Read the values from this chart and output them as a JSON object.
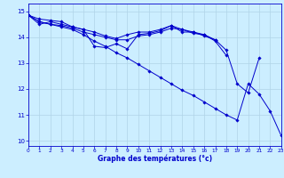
{
  "title": "Graphe des températures (°c)",
  "background_color": "#cceeff",
  "grid_color": "#b0d4e8",
  "line_color": "#0000cc",
  "marker_color": "#0000cc",
  "xlim": [
    0,
    23
  ],
  "ylim": [
    9.8,
    15.3
  ],
  "yticks": [
    10,
    11,
    12,
    13,
    14,
    15
  ],
  "xticks": [
    0,
    1,
    2,
    3,
    4,
    5,
    6,
    7,
    8,
    9,
    10,
    11,
    12,
    13,
    14,
    15,
    16,
    17,
    18,
    19,
    20,
    21,
    22,
    23
  ],
  "series": [
    {
      "x": [
        0,
        1,
        2,
        3,
        4,
        5,
        6,
        7,
        8,
        9,
        10,
        11,
        12,
        13,
        14,
        15,
        16,
        17,
        18
      ],
      "y": [
        14.85,
        14.5,
        14.6,
        14.5,
        14.4,
        14.3,
        13.65,
        13.6,
        13.75,
        13.55,
        14.1,
        14.15,
        14.25,
        14.45,
        14.2,
        14.2,
        14.1,
        13.85,
        13.3
      ]
    },
    {
      "x": [
        0,
        1,
        2,
        3,
        4,
        5,
        6,
        7,
        8,
        9,
        10,
        11,
        12,
        13,
        14,
        15,
        16,
        17
      ],
      "y": [
        14.85,
        14.7,
        14.65,
        14.6,
        14.4,
        14.3,
        14.2,
        14.05,
        13.95,
        14.1,
        14.2,
        14.2,
        14.3,
        14.45,
        14.3,
        14.15,
        14.1,
        13.9
      ]
    },
    {
      "x": [
        0,
        1,
        2,
        3,
        4,
        5,
        6,
        7,
        8,
        9,
        10,
        11,
        12,
        13,
        14,
        15,
        16,
        17,
        18,
        19,
        20,
        21
      ],
      "y": [
        14.85,
        14.6,
        14.5,
        14.45,
        14.35,
        14.2,
        14.1,
        14.0,
        13.9,
        13.9,
        14.05,
        14.1,
        14.2,
        14.35,
        14.3,
        14.2,
        14.05,
        13.9,
        13.5,
        12.2,
        11.85,
        13.2
      ]
    },
    {
      "x": [
        0,
        1,
        2,
        3,
        4,
        5,
        6,
        7,
        8,
        9,
        10,
        11,
        12,
        13,
        14,
        15,
        16,
        17,
        18,
        19,
        20,
        21,
        22,
        23
      ],
      "y": [
        14.85,
        14.6,
        14.5,
        14.4,
        14.3,
        14.1,
        13.85,
        13.65,
        13.4,
        13.2,
        12.95,
        12.7,
        12.45,
        12.2,
        11.95,
        11.75,
        11.5,
        11.25,
        11.0,
        10.8,
        12.2,
        11.8,
        11.15,
        10.2
      ]
    }
  ],
  "figsize": [
    3.2,
    2.0
  ],
  "dpi": 100
}
